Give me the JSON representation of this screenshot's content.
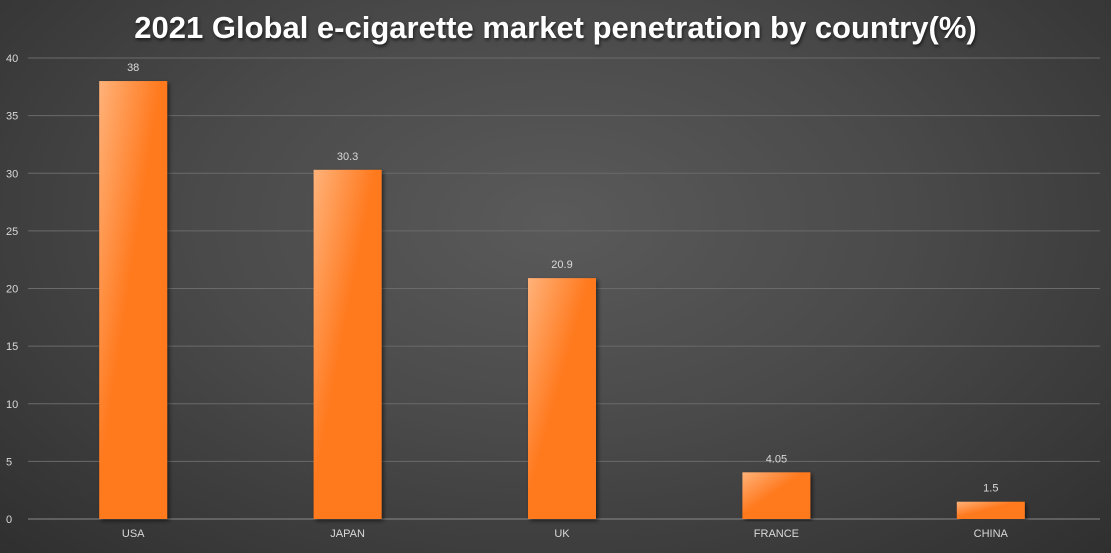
{
  "chart_data": {
    "type": "bar",
    "title": "2021 Global e-cigarette market penetration by country(%)",
    "categories": [
      "USA",
      "JAPAN",
      "UK",
      "FRANCE",
      "CHINA"
    ],
    "values": [
      38,
      30.3,
      20.9,
      4.05,
      1.5
    ],
    "value_labels": [
      "38",
      "30.3",
      "20.9",
      "4.05",
      "1.5"
    ],
    "xlabel": "",
    "ylabel": "",
    "ylim": [
      0,
      40
    ],
    "yticks": [
      0,
      5,
      10,
      15,
      20,
      25,
      30,
      35,
      40
    ],
    "grid": true,
    "legend": "none",
    "colors": {
      "bar_light": "#ffb27a",
      "bar_dark": "#ff7a1f",
      "grid": "#6a6a6a",
      "text": "#d9d9d9",
      "title": "#ffffff"
    }
  }
}
